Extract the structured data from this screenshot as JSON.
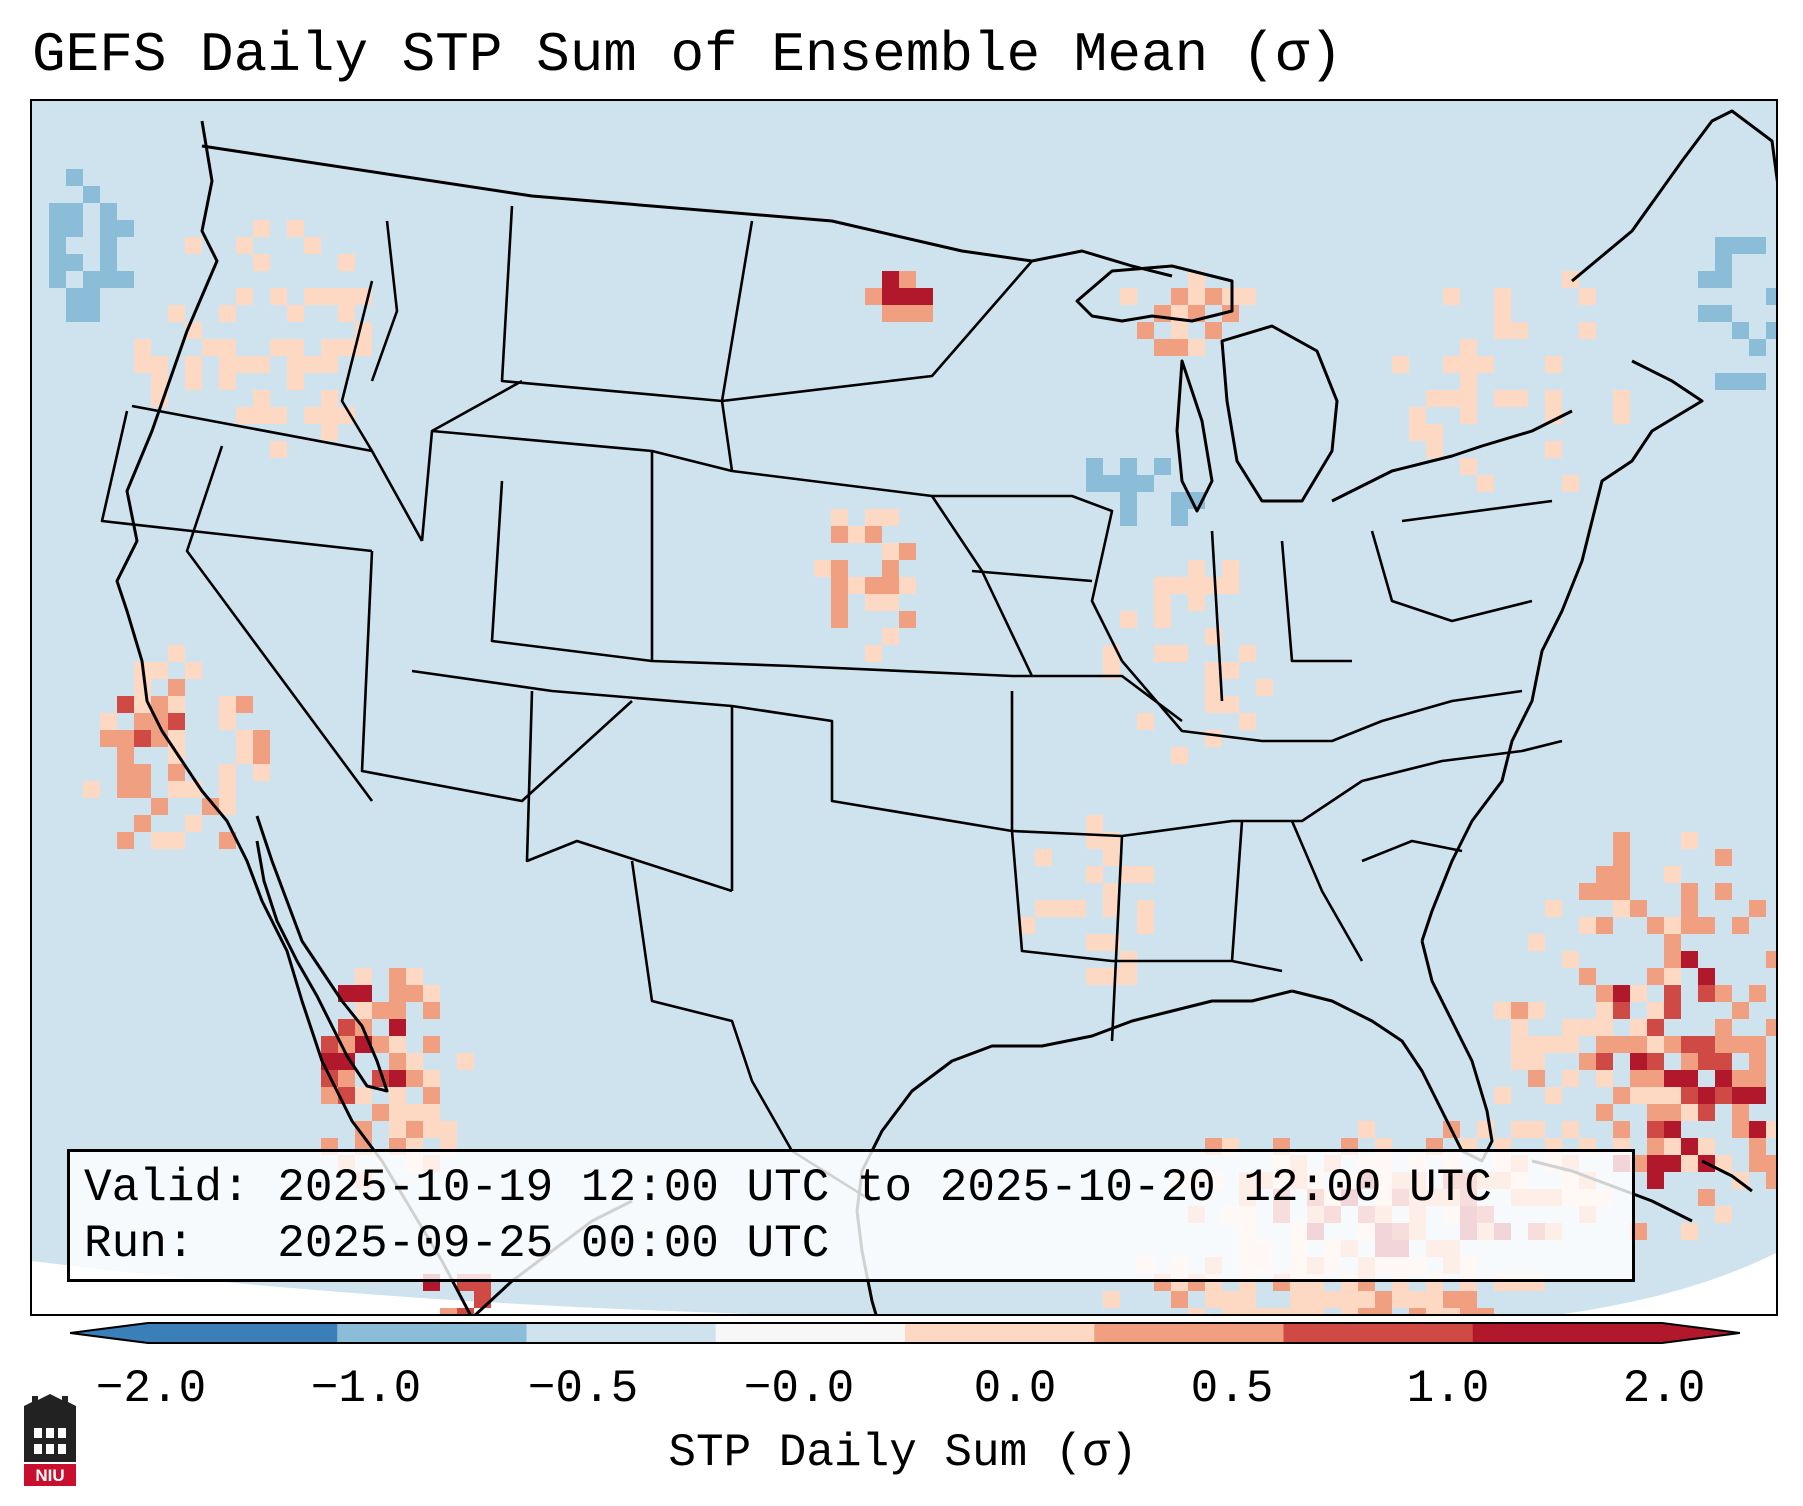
{
  "title": "GEFS Daily STP Sum of Ensemble Mean (σ)",
  "info": {
    "valid_line": "Valid: 2025-10-19 12:00 UTC to 2025-10-20 12:00 UTC",
    "run_line": "Run:   2025-09-25 00:00 UTC"
  },
  "colorbar": {
    "label": "STP Daily Sum (σ)",
    "ticks": [
      "−2.0",
      "−1.0",
      "−0.5",
      "−0.0",
      "0.0",
      "0.5",
      "1.0",
      "2.0"
    ],
    "colors": [
      "#3a7fb8",
      "#8bbdd9",
      "#cfe3ef",
      "#f7f7f7",
      "#fdd9c4",
      "#f09f80",
      "#cf4a45",
      "#b2182b"
    ]
  },
  "map": {
    "background_color": "#cfe3ef",
    "field_colors": {
      "light_red": "#fdd9c4",
      "med_red": "#f09f80",
      "red": "#cf4a45",
      "dark_red": "#b2182b",
      "light_blue": "#8bbdd9"
    }
  },
  "logo": {
    "text": "NIU"
  }
}
